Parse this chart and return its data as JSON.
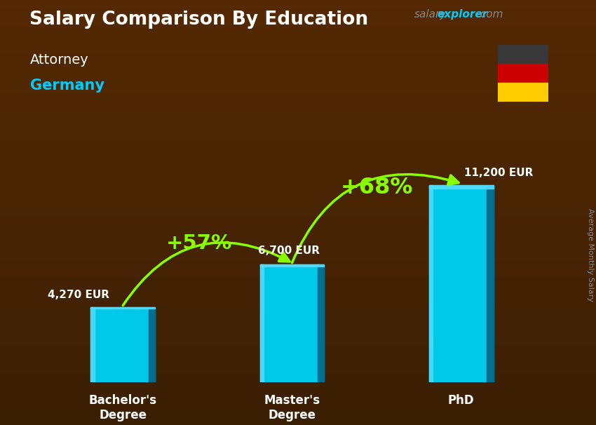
{
  "title": "Salary Comparison By Education",
  "subtitle_job": "Attorney",
  "subtitle_country": "Germany",
  "ylabel": "Average Monthly Salary",
  "website_salary": "salary",
  "website_explorer": "explorer",
  "website_com": ".com",
  "categories": [
    "Bachelor's\nDegree",
    "Master's\nDegree",
    "PhD"
  ],
  "values": [
    4270,
    6700,
    11200
  ],
  "value_labels": [
    "4,270 EUR",
    "6,700 EUR",
    "11,200 EUR"
  ],
  "bar_color_main": "#00c8e8",
  "bar_color_light": "#55ddff",
  "bar_color_dark": "#0088aa",
  "bar_color_side": "#006688",
  "bg_top": "#3a2010",
  "bg_bottom": "#1a0a02",
  "pct_labels": [
    "+57%",
    "+68%"
  ],
  "pct_color": "#88ff00",
  "title_color": "#ffffff",
  "job_color": "#ffffff",
  "country_color": "#00ccff",
  "ylabel_color": "#888888",
  "tick_color": "#ffffff",
  "val_label_color": "#ffffff",
  "website_salary_color": "#888888",
  "website_explorer_color": "#00ccff",
  "website_com_color": "#888888",
  "flag_black": "#383838",
  "flag_red": "#cc0000",
  "flag_gold": "#ffcc00",
  "ymax": 14000,
  "bar_width": 0.38,
  "x_positions": [
    0,
    1,
    2
  ]
}
